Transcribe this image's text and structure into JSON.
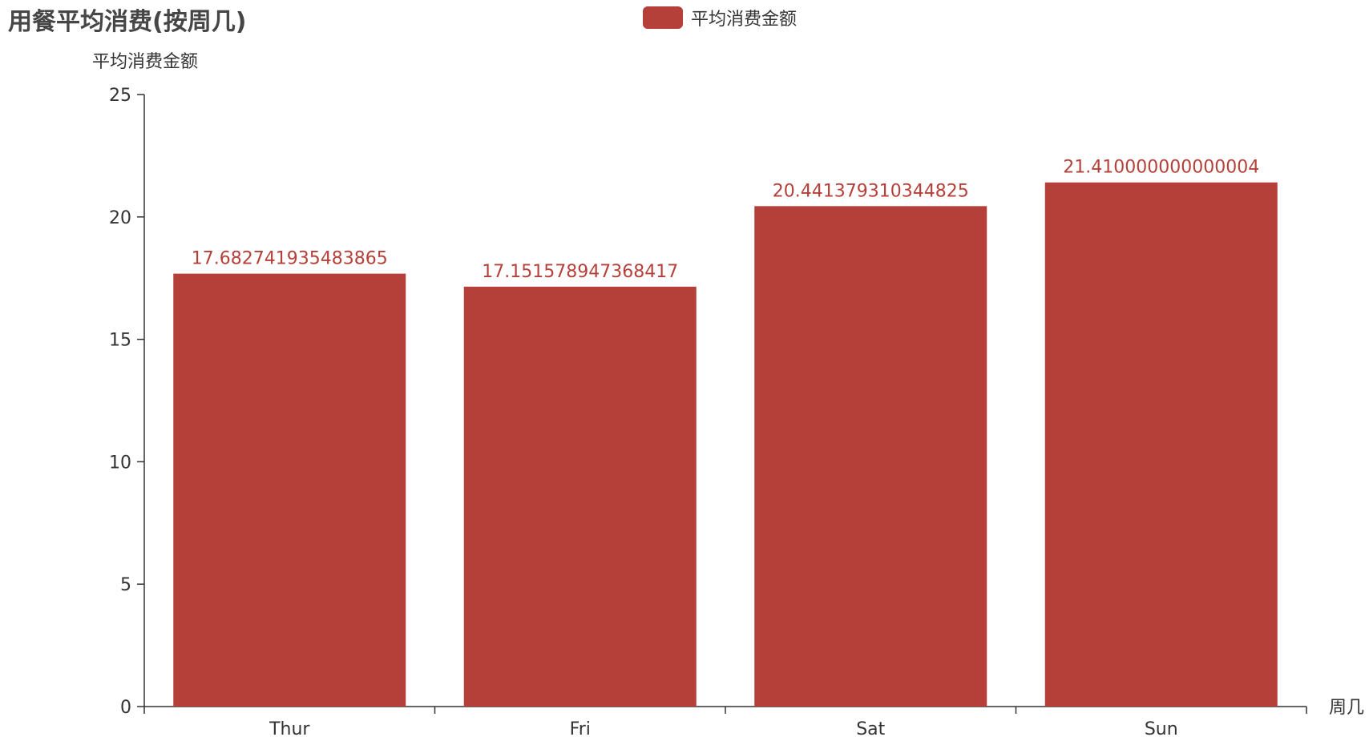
{
  "chart_data": {
    "type": "bar",
    "title": "用餐平均消费(按周几)",
    "xlabel": "周几",
    "ylabel": "平均消费金额",
    "categories": [
      "Thur",
      "Fri",
      "Sat",
      "Sun"
    ],
    "series": [
      {
        "name": "平均消费金额",
        "color": "#b5403a",
        "values": [
          17.682741935483865,
          17.151578947368417,
          20.441379310344825,
          21.410000000000004
        ],
        "labels": [
          "17.682741935483865",
          "17.151578947368417",
          "20.441379310344825",
          "21.410000000000004"
        ]
      }
    ],
    "ylim": [
      0,
      25
    ],
    "yticks": [
      0,
      5,
      10,
      15,
      20,
      25
    ],
    "legend_position": "top-center",
    "grid": false
  }
}
